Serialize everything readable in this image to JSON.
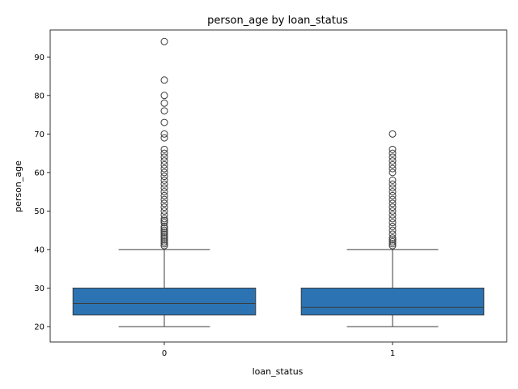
{
  "chart_data": {
    "type": "box",
    "title": "person_age by loan_status",
    "xlabel": "loan_status",
    "ylabel": "person_age",
    "categories": [
      "0",
      "1"
    ],
    "ylim": [
      16,
      97
    ],
    "yticks": [
      20,
      30,
      40,
      50,
      60,
      70,
      80,
      90
    ],
    "grid": false,
    "box_color": "#2b73b3",
    "series": [
      {
        "category": "0",
        "whisker_low": 20,
        "q1": 23,
        "median": 26,
        "q3": 30,
        "whisker_high": 40,
        "outliers": [
          41,
          41.5,
          42,
          42.5,
          43,
          43.5,
          44,
          44.5,
          45,
          45.5,
          46,
          47,
          47.5,
          48,
          49,
          50,
          51,
          52,
          53,
          54,
          55,
          56,
          57,
          58,
          59,
          60,
          61,
          62,
          63,
          64,
          65,
          66,
          69,
          70,
          73,
          76,
          78,
          80,
          84,
          94
        ]
      },
      {
        "category": "1",
        "whisker_low": 20,
        "q1": 23,
        "median": 25,
        "q3": 30,
        "whisker_high": 40,
        "outliers": [
          41,
          41.5,
          42,
          42.5,
          43,
          44,
          45,
          46,
          47,
          48,
          49,
          50,
          51,
          52,
          53,
          54,
          55,
          56,
          57,
          58,
          60,
          61,
          62,
          63,
          64,
          65,
          66,
          70
        ]
      }
    ]
  }
}
